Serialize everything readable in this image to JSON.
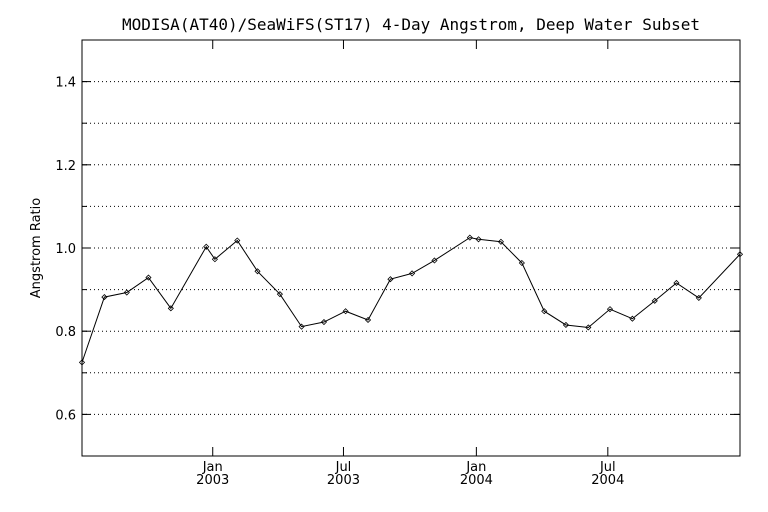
{
  "chart_data": {
    "type": "line",
    "title": "MODISA(AT40)/SeaWiFS(ST17) 4-Day Angstrom, Deep Water Subset",
    "xlabel": "",
    "ylabel": "Angstrom Ratio",
    "ylim": [
      0.5,
      1.5
    ],
    "xlim": [
      "2002-07-04",
      "2004-12-31"
    ],
    "grid": "horizontal dotted",
    "y_ticks": [
      {
        "value": 0.6,
        "label": "0.6"
      },
      {
        "value": 0.8,
        "label": "0.8"
      },
      {
        "value": 1.0,
        "label": "1.0"
      },
      {
        "value": 1.2,
        "label": "1.2"
      },
      {
        "value": 1.4,
        "label": "1.4"
      }
    ],
    "x_ticks": [
      {
        "date": "2003-01-01",
        "month": "Jan",
        "year": "2003"
      },
      {
        "date": "2003-07-01",
        "month": "Jul",
        "year": "2003"
      },
      {
        "date": "2004-01-01",
        "month": "Jan",
        "year": "2004"
      },
      {
        "date": "2004-07-01",
        "month": "Jul",
        "year": "2004"
      }
    ],
    "series": [
      {
        "points": [
          {
            "x": "2002-07-04",
            "y": 0.725
          },
          {
            "x": "2002-08-04",
            "y": 0.882
          },
          {
            "x": "2002-09-04",
            "y": 0.893
          },
          {
            "x": "2002-10-04",
            "y": 0.929
          },
          {
            "x": "2002-11-04",
            "y": 0.855
          },
          {
            "x": "2002-12-23",
            "y": 1.003
          },
          {
            "x": "2003-01-04",
            "y": 0.973
          },
          {
            "x": "2003-02-04",
            "y": 1.018
          },
          {
            "x": "2003-03-04",
            "y": 0.944
          },
          {
            "x": "2003-04-04",
            "y": 0.889
          },
          {
            "x": "2003-05-04",
            "y": 0.811
          },
          {
            "x": "2003-06-04",
            "y": 0.822
          },
          {
            "x": "2003-07-04",
            "y": 0.848
          },
          {
            "x": "2003-08-04",
            "y": 0.827
          },
          {
            "x": "2003-09-04",
            "y": 0.925
          },
          {
            "x": "2003-10-04",
            "y": 0.939
          },
          {
            "x": "2003-11-04",
            "y": 0.97
          },
          {
            "x": "2003-12-23",
            "y": 1.025
          },
          {
            "x": "2004-01-04",
            "y": 1.021
          },
          {
            "x": "2004-02-04",
            "y": 1.015
          },
          {
            "x": "2004-03-04",
            "y": 0.964
          },
          {
            "x": "2004-04-04",
            "y": 0.848
          },
          {
            "x": "2004-05-04",
            "y": 0.815
          },
          {
            "x": "2004-06-04",
            "y": 0.809
          },
          {
            "x": "2004-07-04",
            "y": 0.853
          },
          {
            "x": "2004-08-04",
            "y": 0.83
          },
          {
            "x": "2004-09-04",
            "y": 0.873
          },
          {
            "x": "2004-10-04",
            "y": 0.916
          },
          {
            "x": "2004-11-04",
            "y": 0.88
          },
          {
            "x": "2004-12-31",
            "y": 0.985
          }
        ]
      }
    ]
  }
}
